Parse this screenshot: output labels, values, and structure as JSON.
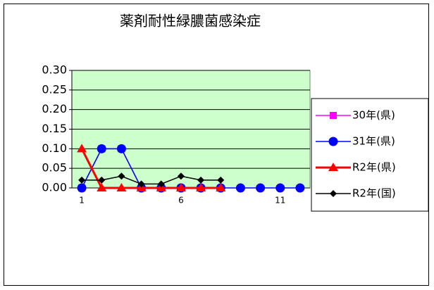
{
  "chart_data": {
    "type": "line",
    "title": "薬剤耐性緑膿菌感染症",
    "categories": [
      "1",
      null,
      null,
      null,
      null,
      "6",
      null,
      null,
      null,
      null,
      "11",
      null
    ],
    "series": [
      {
        "name": "30年(県)",
        "color": "#ff00ff",
        "marker": "square",
        "line_width": 1.5,
        "values": [
          0,
          0.1,
          0.1,
          0,
          0,
          0,
          0,
          0,
          null,
          null,
          null,
          null
        ]
      },
      {
        "name": "31年(県)",
        "color": "#0000ff",
        "marker": "circle",
        "line_width": 1.5,
        "values": [
          0,
          0.1,
          0.1,
          0,
          0,
          0,
          0,
          0,
          0,
          0,
          0,
          0
        ]
      },
      {
        "name": "R2年(県)",
        "color": "#ff0000",
        "marker": "triangle",
        "line_width": 3,
        "values": [
          0.1,
          0,
          0,
          0,
          0,
          0,
          0,
          0,
          null,
          null,
          null,
          null
        ]
      },
      {
        "name": "R2年(国)",
        "color": "#000000",
        "marker": "diamond",
        "line_width": 1.5,
        "values": [
          0.02,
          0.02,
          0.03,
          0.01,
          0.01,
          0.03,
          0.02,
          0.02,
          null,
          null,
          null,
          null
        ]
      }
    ],
    "ylim": [
      0,
      0.3
    ],
    "yticks": [
      {
        "value": 0,
        "label": "0.00"
      },
      {
        "value": 0.05,
        "label": "0.05"
      },
      {
        "value": 0.1,
        "label": "0.10"
      },
      {
        "value": 0.15,
        "label": "0.15"
      },
      {
        "value": 0.2,
        "label": "0.20"
      },
      {
        "value": 0.25,
        "label": "0.25"
      },
      {
        "value": 0.3,
        "label": "0.30"
      }
    ],
    "grid": true,
    "plot_background": "#ccffcc",
    "legend": "right"
  }
}
